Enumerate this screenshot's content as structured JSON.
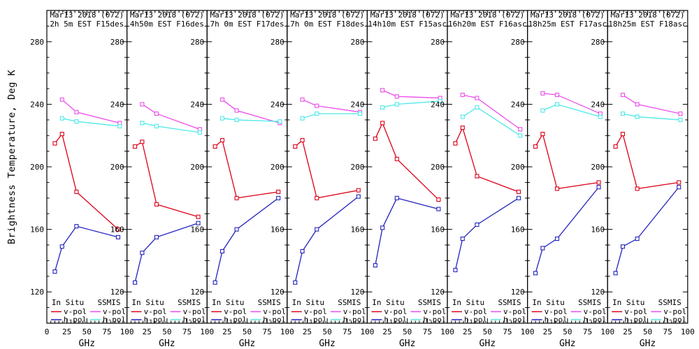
{
  "chart_data": {
    "type": "line",
    "ylabel": "Brightness Temperature, Deg K",
    "xlabel": "GHz",
    "xlim": [
      0,
      100
    ],
    "ylim": [
      100,
      300
    ],
    "xticks": [
      0,
      25,
      50,
      75,
      100
    ],
    "yticks": [
      120,
      160,
      200,
      240,
      280
    ],
    "x_minor_step": 5,
    "y_minor_step": 10,
    "grid": false,
    "legend": {
      "position": "bottom-inside",
      "col1_header": "In Situ",
      "col2_header": "SSMIS",
      "vpol_label": "v-pol",
      "hpol_label": "h-pol"
    },
    "colors": {
      "insitu_vpol": "#dc0018",
      "insitu_hpol": "#2323bc",
      "ssmis_vpol": "#ec4cec",
      "ssmis_hpol": "#4ce8e8",
      "axis": "#000000",
      "background": "#ffffff"
    },
    "insitu_x": [
      10,
      19,
      37,
      89
    ],
    "ssmis_x": [
      19,
      37,
      91
    ],
    "panels": [
      {
        "date": "Mar13 2018 (072)",
        "time": "2h 5m EST F15des",
        "insitu_vpol": [
          215,
          221,
          184,
          160
        ],
        "insitu_hpol": [
          133,
          149,
          162,
          155
        ],
        "ssmis_vpol": [
          243,
          235,
          228
        ],
        "ssmis_hpol": [
          231,
          229,
          226
        ]
      },
      {
        "date": "Mar13 2018 (072)",
        "time": "4h50m EST F16des",
        "insitu_vpol": [
          213,
          216,
          176,
          168
        ],
        "insitu_hpol": [
          126,
          145,
          155,
          164
        ],
        "ssmis_vpol": [
          240,
          234,
          224
        ],
        "ssmis_hpol": [
          228,
          226,
          222
        ]
      },
      {
        "date": "Mar13 2018 (072)",
        "time": "7h 0m EST F17des",
        "insitu_vpol": [
          213,
          217,
          180,
          184
        ],
        "insitu_hpol": [
          126,
          146,
          160,
          180
        ],
        "ssmis_vpol": [
          243,
          236,
          228
        ],
        "ssmis_hpol": [
          231,
          230,
          229
        ]
      },
      {
        "date": "Mar13 2018 (072)",
        "time": "7h 0m EST F18des",
        "insitu_vpol": [
          213,
          217,
          180,
          185
        ],
        "insitu_hpol": [
          126,
          146,
          160,
          181
        ],
        "ssmis_vpol": [
          243,
          239,
          235
        ],
        "ssmis_hpol": [
          231,
          234,
          234
        ]
      },
      {
        "date": "Mar13 2018 (072)",
        "time": "14h10m EST F15asc",
        "insitu_vpol": [
          218,
          228,
          205,
          179
        ],
        "insitu_hpol": [
          137,
          161,
          180,
          173
        ],
        "ssmis_vpol": [
          249,
          245,
          244
        ],
        "ssmis_hpol": [
          238,
          240,
          242
        ]
      },
      {
        "date": "Mar13 2018 (072)",
        "time": "16h20m EST F16asc",
        "insitu_vpol": [
          215,
          225,
          194,
          184
        ],
        "insitu_hpol": [
          134,
          154,
          163,
          180
        ],
        "ssmis_vpol": [
          246,
          244,
          224
        ],
        "ssmis_hpol": [
          232,
          238,
          220
        ]
      },
      {
        "date": "Mar13 2018 (072)",
        "time": "18h25m EST F17asc",
        "insitu_vpol": [
          213,
          221,
          186,
          190
        ],
        "insitu_hpol": [
          132,
          148,
          154,
          187
        ],
        "ssmis_vpol": [
          247,
          246,
          234
        ],
        "ssmis_hpol": [
          236,
          240,
          232
        ]
      },
      {
        "date": "Mar13 2018 (072)",
        "time": "18h25m EST F18asc",
        "insitu_vpol": [
          213,
          221,
          186,
          190
        ],
        "insitu_hpol": [
          132,
          149,
          154,
          187
        ],
        "ssmis_vpol": [
          246,
          240,
          234
        ],
        "ssmis_hpol": [
          234,
          232,
          230
        ]
      }
    ]
  }
}
